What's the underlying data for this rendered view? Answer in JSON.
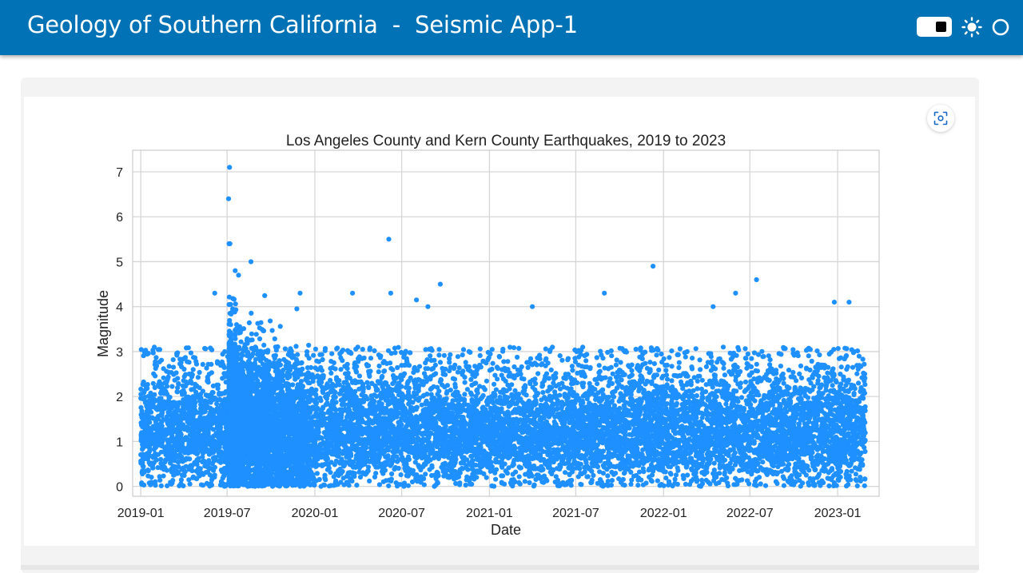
{
  "app": {
    "title": "Geology of Southern California  -  Seismic App-1"
  },
  "header": {
    "background": "#0072b5",
    "controls": [
      {
        "name": "dark-mode-toggle",
        "icon": "toggle-switch-icon",
        "state": "on"
      },
      {
        "name": "light-theme",
        "icon": "sun-icon"
      },
      {
        "name": "theme-option",
        "icon": "circle-icon"
      }
    ]
  },
  "card": {
    "fullscreen_icon": "fullscreen-focus-icon"
  },
  "chart_data": {
    "type": "scatter",
    "title": "Los Angeles County and Kern County Earthquakes, 2019 to 2023",
    "xlabel": "Date",
    "ylabel": "Magnitude",
    "x_type": "date",
    "xlim": [
      "2018-12-15",
      "2023-03-29"
    ],
    "ylim": [
      -0.22,
      7.48
    ],
    "x_ticks": [
      "2019-01",
      "2019-07",
      "2020-01",
      "2020-07",
      "2021-01",
      "2021-07",
      "2022-01",
      "2022-07",
      "2023-01"
    ],
    "y_ticks": [
      "0",
      "1",
      "2",
      "3",
      "4",
      "5",
      "6",
      "7"
    ],
    "grid": true,
    "marker_color": "#1e90ff",
    "data_span": [
      "2019-01-01",
      "2023-02-28"
    ],
    "dense_band": [
      0,
      2.3
    ],
    "notable_events": [
      {
        "x": "2019-07-06",
        "y": 7.1
      },
      {
        "x": "2019-07-04",
        "y": 6.4
      },
      {
        "x": "2019-07-05",
        "y": 5.4
      },
      {
        "x": "2019-07-07",
        "y": 5.4
      },
      {
        "x": "2020-06-04",
        "y": 5.5
      },
      {
        "x": "2021-12-10",
        "y": 4.9
      },
      {
        "x": "2022-07-15",
        "y": 4.6
      },
      {
        "x": "2019-08-20",
        "y": 5.0
      },
      {
        "x": "2020-03-20",
        "y": 4.3
      },
      {
        "x": "2020-06-08",
        "y": 4.3
      },
      {
        "x": "2020-09-20",
        "y": 4.5
      },
      {
        "x": "2020-08-01",
        "y": 4.15
      },
      {
        "x": "2019-06-05",
        "y": 4.3
      },
      {
        "x": "2019-12-01",
        "y": 4.3
      },
      {
        "x": "2021-08-30",
        "y": 4.3
      },
      {
        "x": "2022-06-01",
        "y": 4.3
      },
      {
        "x": "2022-12-25",
        "y": 4.1
      },
      {
        "x": "2023-01-25",
        "y": 4.1
      },
      {
        "x": "2021-04-01",
        "y": 4.0
      },
      {
        "x": "2022-04-15",
        "y": 4.0
      },
      {
        "x": "2020-08-25",
        "y": 4.0
      },
      {
        "x": "2019-07-18",
        "y": 4.8
      },
      {
        "x": "2019-07-25",
        "y": 4.7
      }
    ]
  }
}
